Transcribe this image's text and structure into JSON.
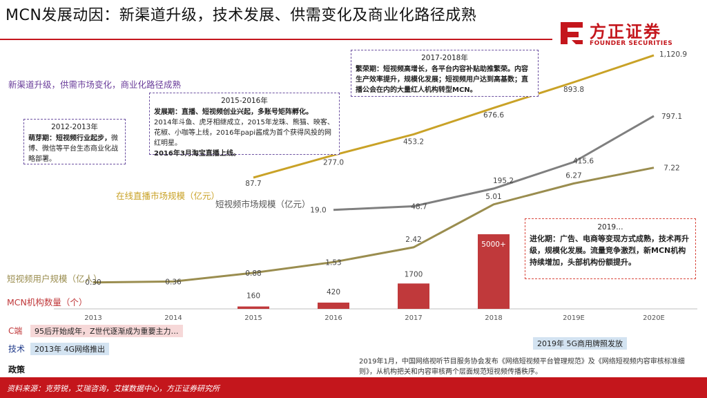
{
  "header": {
    "title": "MCN发展动因：新渠道升级，技术发展、供需变化及商业化路径成熟",
    "subtitle": "新渠道升级，供需市场变化，商业化路径成熟"
  },
  "logo": {
    "cn": "方正证券",
    "en": "FOUNDER SECURITIES",
    "color": "#c4161c"
  },
  "boxes": {
    "b2012": {
      "title": "2012-2013年",
      "bold": "萌芽期：短视频行业起步，",
      "text": "微博、微信等平台生态商业化战略部署。"
    },
    "b2015": {
      "title": "2015-2016年",
      "bold": "发展期：直播、短视频创业兴起，多账号矩阵孵化。",
      "text": "2014年斗鱼、虎牙相继成立，2015年龙珠、熊猫、映客、花椒、小咖等上线，2016年papi酱成为首个获得风投的网红明星。",
      "bold2": "2016年3月淘宝直播上线。"
    },
    "b2017": {
      "title": "2017-2018年",
      "bold": "繁荣期：短视频高增长，各平台内容补贴助推繁荣。内容生产效率提升，规模化发展；短视频用户达到高基数；直播公会在内的大量红人机构转型MCN。"
    },
    "b2019": {
      "title": "2019…",
      "bold": "进化期：广告、电商等变现方式成熟，技术再升级，规模化发展。流量竞争激烈，新MCN机构持续增加，头部机构份额提升。"
    }
  },
  "chart_data": {
    "type": "line",
    "categories": [
      "2013",
      "2014",
      "2015",
      "2016",
      "2017",
      "2018",
      "2019E",
      "2020E"
    ],
    "series": [
      {
        "name": "在线直播市场规模（亿元）",
        "kind": "line",
        "color": "#c9a227",
        "values": [
          null,
          null,
          87.7,
          277.0,
          453.2,
          676.6,
          893.8,
          1120.9
        ],
        "labels": [
          null,
          null,
          "87.7",
          "277.0",
          "453.2",
          "676.6",
          "893.8",
          "1,120.9"
        ]
      },
      {
        "name": "短视频市场规模（亿元）",
        "kind": "line",
        "color": "#7f7f7f",
        "values": [
          null,
          null,
          null,
          19.0,
          48.7,
          195.2,
          415.6,
          797.1
        ],
        "labels": [
          null,
          null,
          null,
          "19.0",
          "48.7",
          "195.2",
          "415.6",
          "797.1"
        ]
      },
      {
        "name": "短视频用户规模（亿人）",
        "kind": "line",
        "color": "#9a8d4f",
        "values": [
          0.3,
          0.36,
          0.88,
          1.53,
          2.42,
          5.01,
          6.27,
          7.22
        ],
        "labels": [
          "0.30",
          "0.36",
          "0.88",
          "1.53",
          "2.42",
          "5.01",
          "6.27",
          "7.22"
        ]
      },
      {
        "name": "MCN机构数量（个）",
        "kind": "bar",
        "color": "#c0393b",
        "values": [
          null,
          null,
          160,
          420,
          1700,
          5000,
          null,
          null
        ],
        "labels": [
          null,
          null,
          "160",
          "420",
          "1700",
          "5000+",
          null,
          null
        ]
      }
    ]
  },
  "rows": {
    "c_label": "C端",
    "c_text": "95后开始成年，Z世代逐渐成为重要主力…",
    "tech_label": "技术",
    "tech_2013": "2013年 4G网络推出",
    "tech_2019": "2019年 5G商用牌照发放",
    "policy_label": "政策",
    "policy_text": "2019年1月，中国网络视听节目服务协会发布《网络短视频平台管理规范》及《网络短视频内容审核标准细则》，从机构把关和内容审核两个层面规范短视频传播秩序。"
  },
  "footer": {
    "source": "资料来源：克劳锐，艾瑞咨询，艾媒数据中心，方正证券研究所"
  }
}
